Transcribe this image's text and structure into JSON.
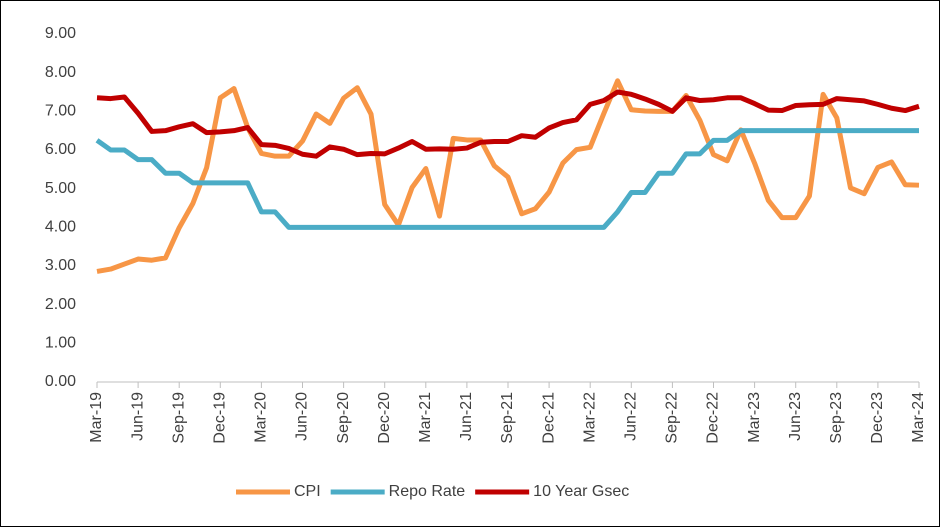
{
  "chart_data": {
    "type": "line",
    "categories": [
      "Mar-19",
      null,
      null,
      "Jun-19",
      null,
      null,
      "Sep-19",
      null,
      null,
      "Dec-19",
      null,
      null,
      "Mar-20",
      null,
      null,
      "Jun-20",
      null,
      null,
      "Sep-20",
      null,
      null,
      "Dec-20",
      null,
      null,
      "Mar-21",
      null,
      null,
      "Jun-21",
      null,
      null,
      "Sep-21",
      null,
      null,
      "Dec-21",
      null,
      null,
      "Mar-22",
      null,
      null,
      "Jun-22",
      null,
      null,
      "Sep-22",
      null,
      null,
      "Dec-22",
      null,
      null,
      "Mar-23",
      null,
      null,
      "Jun-23",
      null,
      null,
      "Sep-23",
      null,
      null,
      "Dec-23",
      null,
      null,
      "Mar-24"
    ],
    "series": [
      {
        "name": "CPI",
        "color": "#f79646",
        "values": [
          2.86,
          2.92,
          3.05,
          3.18,
          3.15,
          3.21,
          3.99,
          4.62,
          5.54,
          7.35,
          7.59,
          6.58,
          5.91,
          5.84,
          5.84,
          6.23,
          6.93,
          6.69,
          7.34,
          7.61,
          6.93,
          4.59,
          4.06,
          5.03,
          5.52,
          4.29,
          6.3,
          6.26,
          6.26,
          5.59,
          5.3,
          4.35,
          4.48,
          4.91,
          5.66,
          6.01,
          6.07,
          6.95,
          7.79,
          7.04,
          7.01,
          7.0,
          7.0,
          7.41,
          6.77,
          5.88,
          5.72,
          6.52,
          5.66,
          4.7,
          4.25,
          4.25,
          4.81,
          7.44,
          6.83,
          5.02,
          4.87,
          5.55,
          5.69,
          5.1,
          5.09
        ]
      },
      {
        "name": "Repo Rate",
        "color": "#4bacc6",
        "values": [
          6.25,
          6.0,
          6.0,
          5.75,
          5.75,
          5.4,
          5.4,
          5.15,
          5.15,
          5.15,
          5.15,
          5.15,
          4.4,
          4.4,
          4.0,
          4.0,
          4.0,
          4.0,
          4.0,
          4.0,
          4.0,
          4.0,
          4.0,
          4.0,
          4.0,
          4.0,
          4.0,
          4.0,
          4.0,
          4.0,
          4.0,
          4.0,
          4.0,
          4.0,
          4.0,
          4.0,
          4.0,
          4.0,
          4.4,
          4.9,
          4.9,
          5.4,
          5.4,
          5.9,
          5.9,
          6.25,
          6.25,
          6.5,
          6.5,
          6.5,
          6.5,
          6.5,
          6.5,
          6.5,
          6.5,
          6.5,
          6.5,
          6.5,
          6.5,
          6.5,
          6.5
        ]
      },
      {
        "name": "10 Year Gsec",
        "color": "#c00000",
        "values": [
          7.35,
          7.33,
          7.37,
          6.95,
          6.48,
          6.5,
          6.6,
          6.68,
          6.45,
          6.47,
          6.5,
          6.58,
          6.14,
          6.12,
          6.04,
          5.89,
          5.84,
          6.08,
          6.02,
          5.88,
          5.91,
          5.9,
          6.05,
          6.22,
          6.02,
          6.03,
          6.02,
          6.05,
          6.2,
          6.22,
          6.22,
          6.37,
          6.33,
          6.57,
          6.71,
          6.78,
          7.18,
          7.28,
          7.5,
          7.44,
          7.32,
          7.18,
          7.0,
          7.35,
          7.28,
          7.3,
          7.35,
          7.35,
          7.2,
          7.03,
          7.02,
          7.15,
          7.17,
          7.18,
          7.33,
          7.3,
          7.27,
          7.18,
          7.08,
          7.02,
          7.13
        ]
      }
    ],
    "ylim": [
      0,
      9
    ],
    "yticks": [
      {
        "value": 0,
        "label": "0.00"
      },
      {
        "value": 1,
        "label": "1.00"
      },
      {
        "value": 2,
        "label": "2.00"
      },
      {
        "value": 3,
        "label": "3.00"
      },
      {
        "value": 4,
        "label": "4.00"
      },
      {
        "value": 5,
        "label": "5.00"
      },
      {
        "value": 6,
        "label": "6.00"
      },
      {
        "value": 7,
        "label": "7.00"
      },
      {
        "value": 8,
        "label": "8.00"
      },
      {
        "value": 9,
        "label": "9.00"
      }
    ],
    "grid": false,
    "legend": "bottom"
  }
}
